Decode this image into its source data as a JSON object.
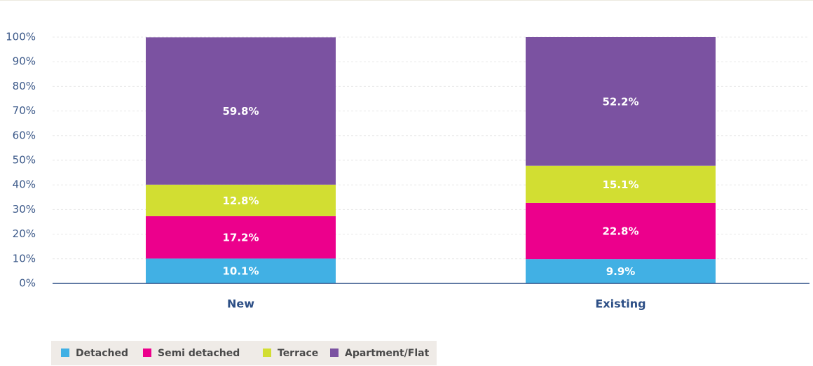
{
  "chart_data": {
    "type": "stacked_bar",
    "categories": [
      "New",
      "Existing"
    ],
    "series": [
      {
        "name": "Detached",
        "color": "#41b0e4",
        "values": [
          10.1,
          9.9
        ],
        "value_labels": [
          "10.1%",
          "9.9%"
        ]
      },
      {
        "name": "Semi detached",
        "color": "#ec008c",
        "values": [
          17.2,
          22.8
        ],
        "value_labels": [
          "17.2%",
          "22.8%"
        ]
      },
      {
        "name": "Terrace",
        "color": "#d2de32",
        "values": [
          12.8,
          15.1
        ],
        "value_labels": [
          "12.8%",
          "15.1%"
        ]
      },
      {
        "name": "Apartment/Flat",
        "color": "#7b52a1",
        "values": [
          59.8,
          52.2
        ],
        "value_labels": [
          "59.8%",
          "52.2%"
        ]
      }
    ],
    "ylim": [
      0,
      100
    ],
    "yticks": [
      {
        "value": 0,
        "label": "0%"
      },
      {
        "value": 10,
        "label": "10%"
      },
      {
        "value": 20,
        "label": "20%"
      },
      {
        "value": 30,
        "label": "30%"
      },
      {
        "value": 40,
        "label": "40%"
      },
      {
        "value": 50,
        "label": "50%"
      },
      {
        "value": 60,
        "label": "60%"
      },
      {
        "value": 70,
        "label": "70%"
      },
      {
        "value": 80,
        "label": "80%"
      },
      {
        "value": 90,
        "label": "90%"
      },
      {
        "value": 100,
        "label": "100%"
      }
    ],
    "grid": true
  }
}
